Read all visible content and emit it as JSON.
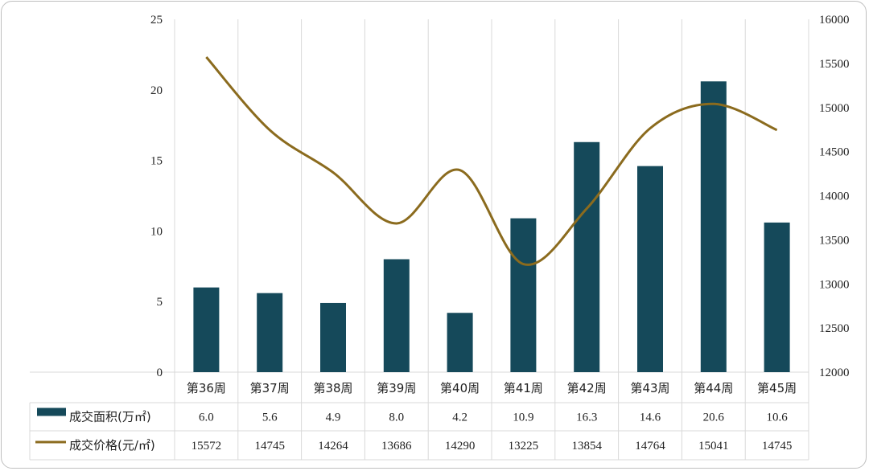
{
  "chart_data": {
    "type": "bar",
    "categories": [
      "第36周",
      "第37周",
      "第38周",
      "第39周",
      "第40周",
      "第41周",
      "第42周",
      "第43周",
      "第44周",
      "第45周"
    ],
    "series": [
      {
        "name": "成交面积(万㎡)",
        "type": "bar",
        "axis": "left",
        "color": "#15495a",
        "values": [
          6.0,
          5.6,
          4.9,
          8.0,
          4.2,
          10.9,
          16.3,
          14.6,
          20.6,
          10.6
        ],
        "labels": [
          "6.0",
          "5.6",
          "4.9",
          "8.0",
          "4.2",
          "10.9",
          "16.3",
          "14.6",
          "20.6",
          "10.6"
        ]
      },
      {
        "name": "成交价格(元/㎡)",
        "type": "line",
        "axis": "right",
        "color": "#8b6b1e",
        "values": [
          15572,
          14745,
          14264,
          13686,
          14290,
          13225,
          13854,
          14764,
          15041,
          14745
        ],
        "labels": [
          "15572",
          "14745",
          "14264",
          "13686",
          "14290",
          "13225",
          "13854",
          "14764",
          "15041",
          "14745"
        ]
      }
    ],
    "y_left": {
      "min": 0,
      "max": 25,
      "ticks": [
        "0",
        "5",
        "10",
        "15",
        "20",
        "25"
      ]
    },
    "y_right": {
      "min": 12000,
      "max": 16000,
      "ticks": [
        "12000",
        "12500",
        "13000",
        "13500",
        "14000",
        "14500",
        "15000",
        "15500",
        "16000"
      ]
    },
    "grid": true,
    "legend": "data-table"
  }
}
